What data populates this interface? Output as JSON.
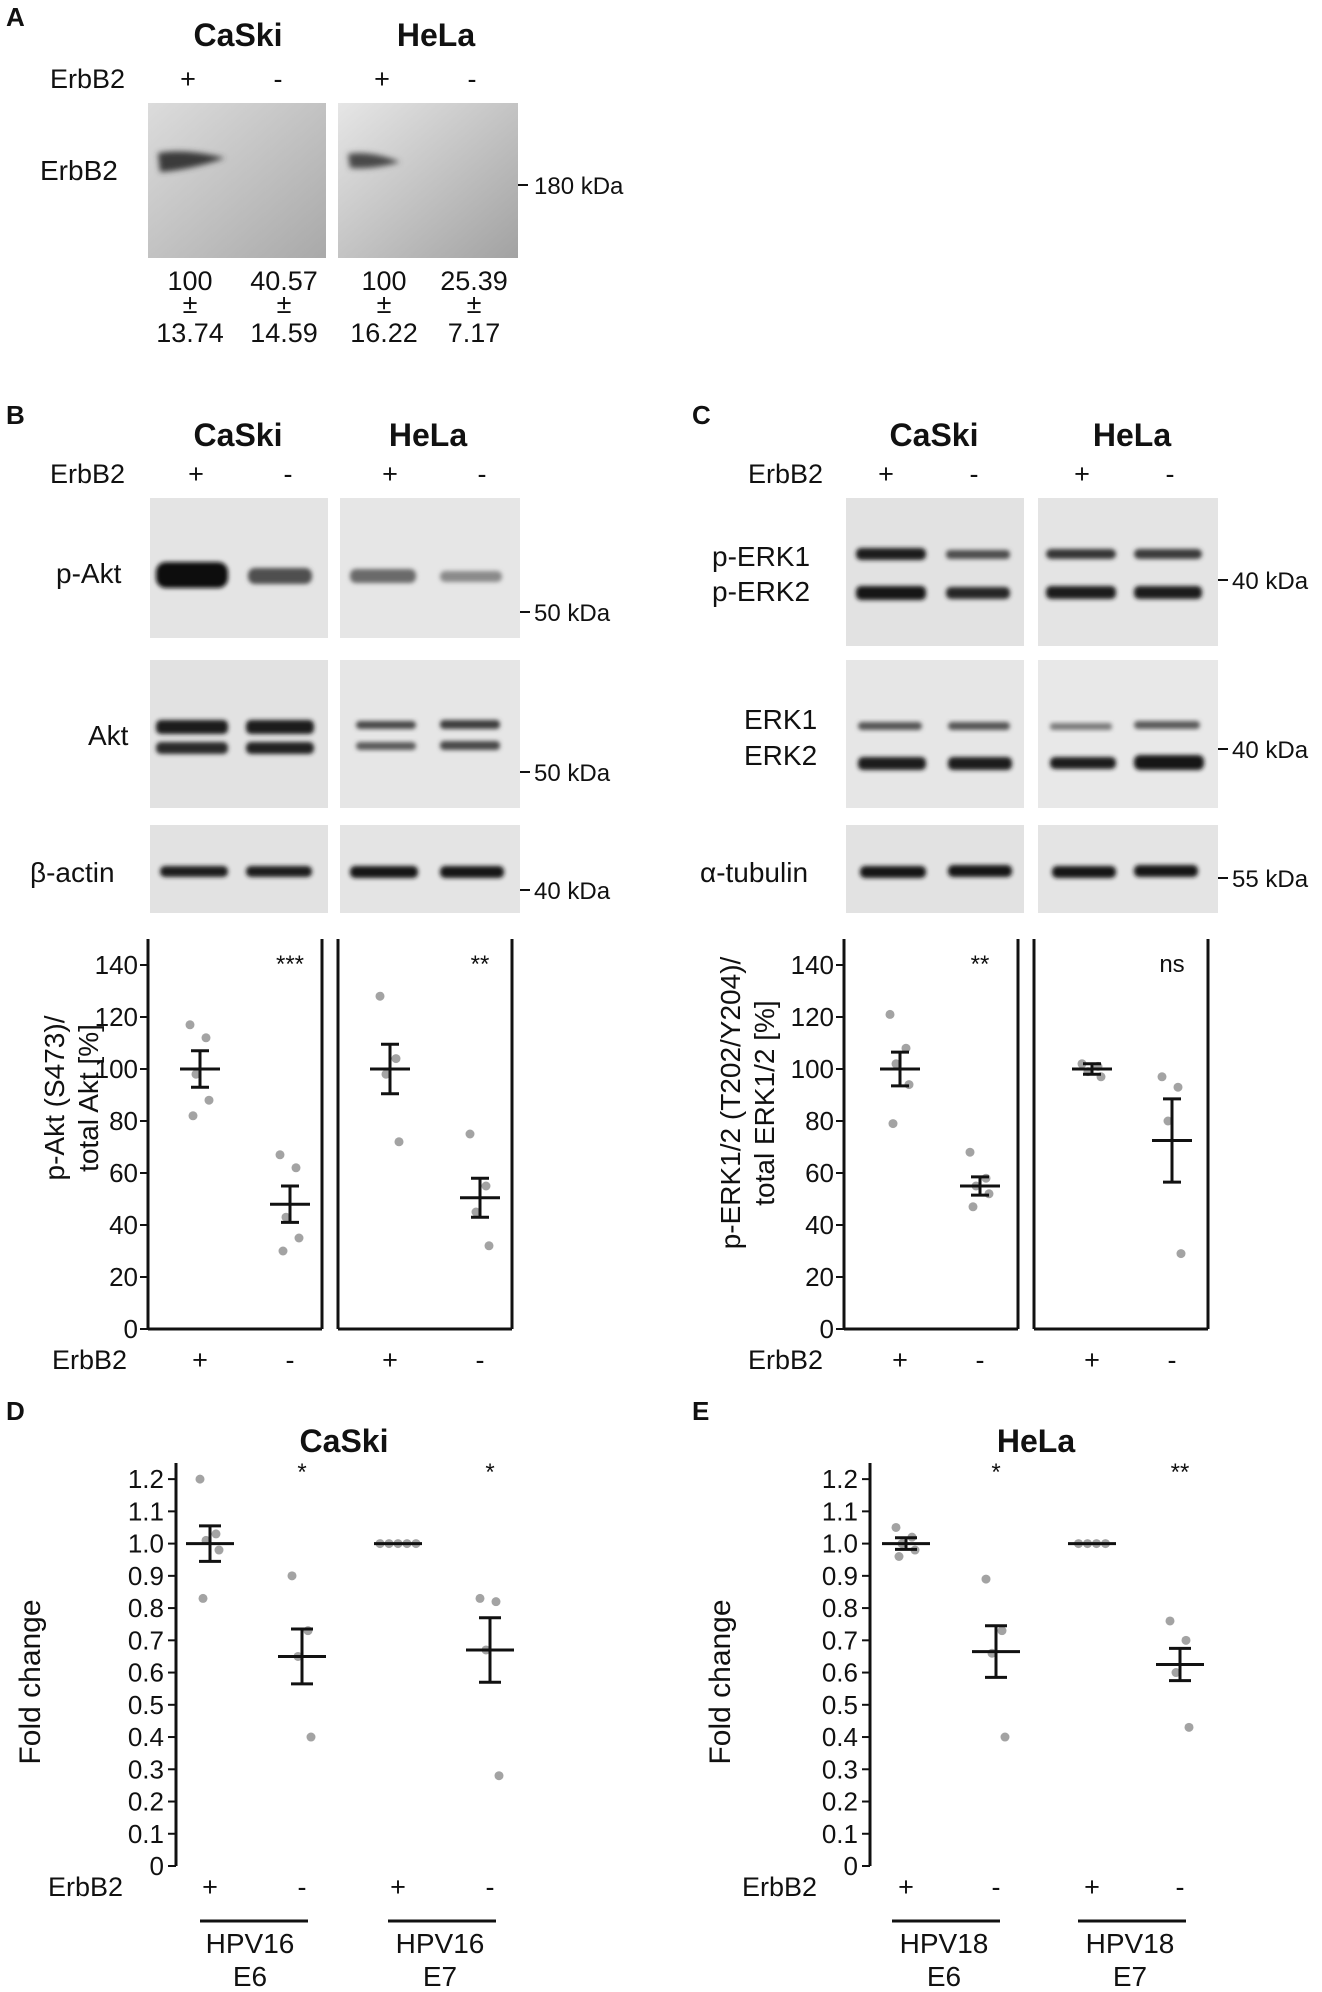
{
  "panels": {
    "A": {
      "letter": "A",
      "cell_lines": [
        "CaSki",
        "HeLa"
      ],
      "erbb2_label": "ErbB2",
      "lane_signs": [
        "+",
        "-",
        "+",
        "-"
      ],
      "blot_label": "ErbB2",
      "marker": "180 kDa",
      "quant": [
        {
          "mean": "100",
          "pm": "±",
          "sem": "13.74"
        },
        {
          "mean": "40.57",
          "pm": "±",
          "sem": "14.59"
        },
        {
          "mean": "100",
          "pm": "±",
          "sem": "16.22"
        },
        {
          "mean": "25.39",
          "pm": "±",
          "sem": "7.17"
        }
      ]
    },
    "B": {
      "letter": "B",
      "cell_lines": [
        "CaSki",
        "HeLa"
      ],
      "erbb2_label": "ErbB2",
      "lane_signs": [
        "+",
        "-",
        "+",
        "-"
      ],
      "blots": [
        {
          "label": "p-Akt",
          "marker": "50 kDa"
        },
        {
          "label": "Akt",
          "marker": "50 kDa"
        },
        {
          "label": "β-actin",
          "marker": "40 kDa"
        }
      ]
    },
    "C": {
      "letter": "C",
      "cell_lines": [
        "CaSki",
        "HeLa"
      ],
      "erbb2_label": "ErbB2",
      "lane_signs": [
        "+",
        "-",
        "+",
        "-"
      ],
      "blots": [
        {
          "label1": "p-ERK1",
          "label2": "p-ERK2",
          "marker": "40 kDa"
        },
        {
          "label1": "ERK1",
          "label2": "ERK2",
          "marker": "40 kDa"
        },
        {
          "label1": "α-tubulin",
          "label2": "",
          "marker": "55 kDa"
        }
      ]
    },
    "D": {
      "letter": "D"
    },
    "E": {
      "letter": "E"
    }
  },
  "chart_data": [
    {
      "id": "B-plot",
      "type": "scatter",
      "ylabel_line1": "p-Akt (S473)/",
      "ylabel_line2": "total Akt [%]",
      "ylim": [
        0,
        150
      ],
      "yticks": [
        0,
        20,
        40,
        60,
        80,
        100,
        120,
        140
      ],
      "x_label": "ErbB2",
      "groups": [
        {
          "x": "+",
          "mean": 100,
          "sem": 7,
          "points": [
            117,
            112,
            98,
            88,
            82
          ]
        },
        {
          "x": "-",
          "mean": 48,
          "sem": 7,
          "points": [
            67,
            62,
            43,
            35,
            30
          ],
          "sig": "***"
        },
        {
          "x": "+",
          "mean": 100,
          "sem": 9.5,
          "points": [
            128,
            104,
            98,
            72
          ]
        },
        {
          "x": "-",
          "mean": 50.5,
          "sem": 7.5,
          "points": [
            75,
            55,
            45,
            32
          ],
          "sig": "**"
        }
      ]
    },
    {
      "id": "C-plot",
      "type": "scatter",
      "ylabel_line1": "p-ERK1/2 (T202/Y204)/",
      "ylabel_line2": "total ERK1/2 [%]",
      "ylim": [
        0,
        150
      ],
      "yticks": [
        0,
        20,
        40,
        60,
        80,
        100,
        120,
        140
      ],
      "x_label": "ErbB2",
      "groups": [
        {
          "x": "+",
          "mean": 100,
          "sem": 6.5,
          "points": [
            121,
            108,
            102,
            94,
            79
          ]
        },
        {
          "x": "-",
          "mean": 55,
          "sem": 3.5,
          "points": [
            68,
            58,
            55,
            52,
            47
          ],
          "sig": "**"
        },
        {
          "x": "+",
          "mean": 100,
          "sem": 2,
          "points": [
            102,
            101,
            99,
            97
          ]
        },
        {
          "x": "-",
          "mean": 72.5,
          "sem": 16,
          "points": [
            97,
            93,
            80,
            29
          ],
          "sig": "ns"
        }
      ]
    },
    {
      "id": "D-plot",
      "type": "scatter",
      "title": "CaSki",
      "ylabel": "Fold change",
      "ylim": [
        0,
        1.25
      ],
      "yticks": [
        "0",
        "0.1",
        "0.2",
        "0.3",
        "0.4",
        "0.5",
        "0.6",
        "0.7",
        "0.8",
        "0.9",
        "1.0",
        "1.1",
        "1.2"
      ],
      "x_label": "ErbB2",
      "group_labels": [
        {
          "line1": "HPV16",
          "line2": "E6"
        },
        {
          "line1": "HPV16",
          "line2": "E7"
        }
      ],
      "groups": [
        {
          "x": "+",
          "mean": 1.0,
          "sem": 0.055,
          "points": [
            1.2,
            1.03,
            1.01,
            0.98,
            0.83
          ]
        },
        {
          "x": "-",
          "mean": 0.65,
          "sem": 0.085,
          "points": [
            0.9,
            0.73,
            0.65,
            0.4
          ],
          "sig": "*"
        },
        {
          "x": "+",
          "mean": 1.0,
          "sem": 0.0,
          "points": [
            1.0,
            1.0,
            1.0,
            1.0,
            1.0
          ]
        },
        {
          "x": "-",
          "mean": 0.67,
          "sem": 0.1,
          "points": [
            0.83,
            0.82,
            0.67,
            0.28
          ],
          "sig": "*"
        }
      ]
    },
    {
      "id": "E-plot",
      "type": "scatter",
      "title": "HeLa",
      "ylabel": "Fold change",
      "ylim": [
        0,
        1.25
      ],
      "yticks": [
        "0",
        "0.1",
        "0.2",
        "0.3",
        "0.4",
        "0.5",
        "0.6",
        "0.7",
        "0.8",
        "0.9",
        "1.0",
        "1.1",
        "1.2"
      ],
      "x_label": "ErbB2",
      "group_labels": [
        {
          "line1": "HPV18",
          "line2": "E6"
        },
        {
          "line1": "HPV18",
          "line2": "E7"
        }
      ],
      "groups": [
        {
          "x": "+",
          "mean": 1.0,
          "sem": 0.018,
          "points": [
            1.05,
            1.02,
            1.0,
            0.98,
            0.96
          ]
        },
        {
          "x": "-",
          "mean": 0.665,
          "sem": 0.08,
          "points": [
            0.89,
            0.73,
            0.66,
            0.4
          ],
          "sig": "*"
        },
        {
          "x": "+",
          "mean": 1.0,
          "sem": 0.0,
          "points": [
            1.0,
            1.0,
            1.0,
            1.0
          ]
        },
        {
          "x": "-",
          "mean": 0.625,
          "sem": 0.05,
          "points": [
            0.76,
            0.7,
            0.6,
            0.43
          ],
          "sig": "**"
        }
      ]
    }
  ]
}
